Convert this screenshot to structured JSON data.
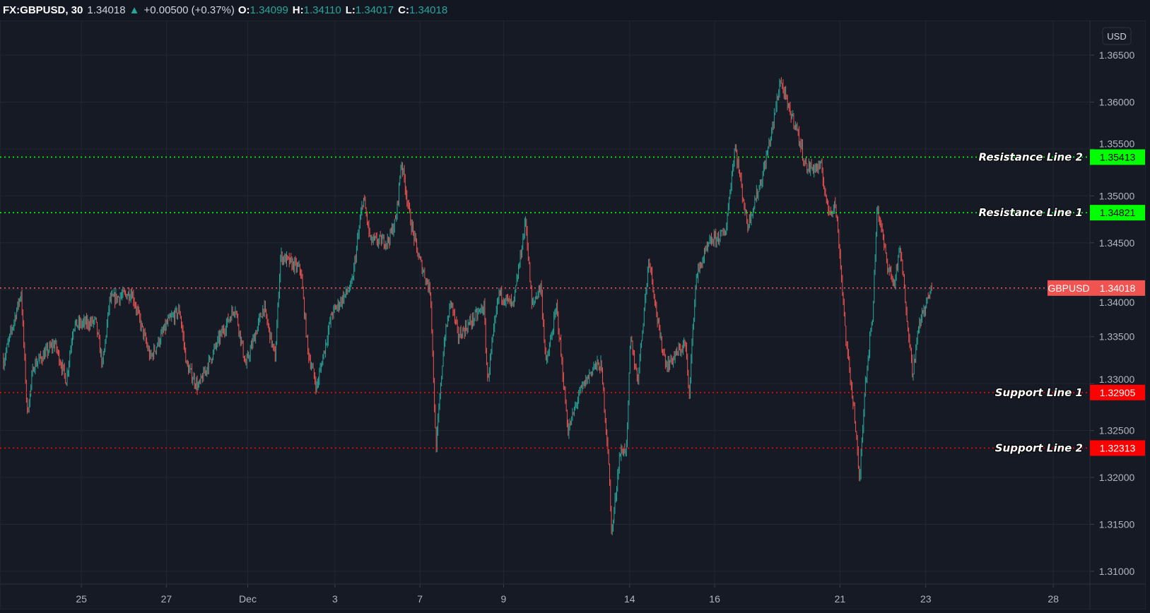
{
  "header": {
    "symbol": "FX:GBPUSD, 30",
    "last": "1.34018",
    "direction_icon": "triangle-up",
    "change": "+0.00500 (+0.37%)",
    "open_label": "O:",
    "open": "1.34099",
    "high_label": "H:",
    "high": "1.34110",
    "low_label": "L:",
    "low": "1.34017",
    "close_label": "C:",
    "close": "1.34018"
  },
  "chart_data": {
    "type": "candlestick",
    "interval": "30",
    "currency_label": "USD",
    "ylim": [
      1.3075,
      1.3675
    ],
    "y_ticks": [
      "1.36500",
      "1.36000",
      "1.35500",
      "1.35000",
      "1.34500",
      "1.34000",
      "1.33500",
      "1.33000",
      "1.32500",
      "1.32000",
      "1.31500",
      "1.31000"
    ],
    "x_ticks": [
      {
        "date": "Nov 25",
        "label": "25"
      },
      {
        "date": "Nov 27",
        "label": "27"
      },
      {
        "date": "Dec 1",
        "label": "Dec"
      },
      {
        "date": "Dec 3",
        "label": "3"
      },
      {
        "date": "Dec 7",
        "label": "7"
      },
      {
        "date": "Dec 9",
        "label": "9"
      },
      {
        "date": "Dec 14",
        "label": "14"
      },
      {
        "date": "Dec 16",
        "label": "16"
      },
      {
        "date": "Dec 21",
        "label": "21"
      },
      {
        "date": "Dec 23",
        "label": "23"
      },
      {
        "date": "Dec 28",
        "label": "28"
      }
    ],
    "grid": true,
    "colors": {
      "up": "#26a69a",
      "down": "#ef5350",
      "resistance": "#00ff00",
      "support": "#ff0000",
      "last_price": "#f05350",
      "background": "#161a25"
    },
    "price_path": [
      [
        "Nov 23 04:00",
        1.3323
      ],
      [
        "Nov 23 14:00",
        1.3397
      ],
      [
        "Nov 23 17:30",
        1.3268
      ],
      [
        "Nov 23 21:00",
        1.3319
      ],
      [
        "Nov 24 09:00",
        1.3343
      ],
      [
        "Nov 24 15:30",
        1.3303
      ],
      [
        "Nov 24 19:30",
        1.3362
      ],
      [
        "Nov 25 08:00",
        1.3366
      ],
      [
        "Nov 25 12:00",
        1.3319
      ],
      [
        "Nov 25 16:00",
        1.3389
      ],
      [
        "Nov 26 04:30",
        1.3397
      ],
      [
        "Nov 26 15:00",
        1.3327
      ],
      [
        "Nov 27 01:00",
        1.3366
      ],
      [
        "Nov 27 07:30",
        1.3378
      ],
      [
        "Nov 27 11:30",
        1.3319
      ],
      [
        "Nov 27 18:00",
        1.3296
      ],
      [
        "Nov 30 07:30",
        1.335
      ],
      [
        "Nov 30 16:00",
        1.3382
      ],
      [
        "Nov 30 22:00",
        1.3319
      ],
      [
        "Dec 1 09:00",
        1.3382
      ],
      [
        "Dec 1 15:30",
        1.3327
      ],
      [
        "Dec 1 18:30",
        1.3436
      ],
      [
        "Dec 2 05:30",
        1.3421
      ],
      [
        "Dec 2 09:30",
        1.3335
      ],
      [
        "Dec 2 14:30",
        1.3296
      ],
      [
        "Dec 2 23:00",
        1.3374
      ],
      [
        "Dec 3 09:30",
        1.3405
      ],
      [
        "Dec 3 16:00",
        1.3499
      ],
      [
        "Dec 3 20:00",
        1.3452
      ],
      [
        "Dec 4 06:00",
        1.3452
      ],
      [
        "Dec 4 10:30",
        1.3475
      ],
      [
        "Dec 4 13:30",
        1.3538
      ],
      [
        "Dec 4 18:30",
        1.3475
      ],
      [
        "Dec 4 23:00",
        1.3436
      ],
      [
        "Dec 7 06:00",
        1.3397
      ],
      [
        "Dec 7 09:00",
        1.3229
      ],
      [
        "Dec 7 13:30",
        1.3343
      ],
      [
        "Dec 7 17:30",
        1.3389
      ],
      [
        "Dec 7 21:30",
        1.335
      ],
      [
        "Dec 8 12:30",
        1.3382
      ],
      [
        "Dec 8 14:30",
        1.3303
      ],
      [
        "Dec 8 21:00",
        1.3397
      ],
      [
        "Dec 9 05:30",
        1.3382
      ],
      [
        "Dec 9 12:30",
        1.3475
      ],
      [
        "Dec 9 16:00",
        1.3382
      ],
      [
        "Dec 9 21:00",
        1.3405
      ],
      [
        "Dec 10 00:00",
        1.3319
      ],
      [
        "Dec 10 06:00",
        1.3382
      ],
      [
        "Dec 10 10:30",
        1.3288
      ],
      [
        "Dec 10 12:30",
        1.3249
      ],
      [
        "Dec 10 18:30",
        1.3288
      ],
      [
        "Dec 11 03:30",
        1.3319
      ],
      [
        "Dec 11 07:30",
        1.3319
      ],
      [
        "Dec 11 11:30",
        1.3225
      ],
      [
        "Dec 11 13:30",
        1.3139
      ],
      [
        "Dec 11 18:00",
        1.3225
      ],
      [
        "Dec 11 22:00",
        1.3233
      ],
      [
        "Dec 14 00:30",
        1.335
      ],
      [
        "Dec 14 04:30",
        1.3303
      ],
      [
        "Dec 14 11:00",
        1.3436
      ],
      [
        "Dec 14 17:00",
        1.335
      ],
      [
        "Dec 14 21:00",
        1.3319
      ],
      [
        "Dec 15 07:30",
        1.3343
      ],
      [
        "Dec 15 09:30",
        1.3288
      ],
      [
        "Dec 15 13:30",
        1.3413
      ],
      [
        "Dec 15 18:00",
        1.3436
      ],
      [
        "Dec 15 22:00",
        1.3452
      ],
      [
        "Dec 16 06:00",
        1.346
      ],
      [
        "Dec 16 11:30",
        1.3554
      ],
      [
        "Dec 16 18:30",
        1.3468
      ],
      [
        "Dec 17 03:30",
        1.3522
      ],
      [
        "Dec 17 09:30",
        1.3577
      ],
      [
        "Dec 17 13:30",
        1.3624
      ],
      [
        "Dec 17 18:00",
        1.3593
      ],
      [
        "Dec 17 22:00",
        1.3577
      ],
      [
        "Dec 18 04:30",
        1.353
      ],
      [
        "Dec 18 13:00",
        1.353
      ],
      [
        "Dec 18 17:00",
        1.3483
      ],
      [
        "Dec 18 21:00",
        1.3491
      ],
      [
        "Dec 21 00:00",
        1.3436
      ],
      [
        "Dec 21 03:30",
        1.3343
      ],
      [
        "Dec 21 08:00",
        1.3272
      ],
      [
        "Dec 21 11:00",
        1.3194
      ],
      [
        "Dec 21 14:00",
        1.3296
      ],
      [
        "Dec 21 18:30",
        1.3374
      ],
      [
        "Dec 21 21:00",
        1.3491
      ],
      [
        "Dec 22 02:30",
        1.3429
      ],
      [
        "Dec 22 06:30",
        1.3405
      ],
      [
        "Dec 22 10:00",
        1.3444
      ],
      [
        "Dec 22 15:00",
        1.335
      ],
      [
        "Dec 22 17:00",
        1.3311
      ],
      [
        "Dec 22 21:00",
        1.3366
      ],
      [
        "Dec 23 01:00",
        1.3389
      ],
      [
        "Dec 23 03:30",
        1.34018
      ]
    ],
    "levels": [
      {
        "label": "Resistance Line 2",
        "value": "1.35413",
        "kind": "resistance"
      },
      {
        "label": "Resistance Line 1",
        "value": "1.34821",
        "kind": "resistance"
      },
      {
        "label": "Support Line 1",
        "value": "1.32905",
        "kind": "support"
      },
      {
        "label": "Support Line 2",
        "value": "1.32313",
        "kind": "support"
      }
    ],
    "last_price": {
      "label": "GBPUSD",
      "value": "1.34018"
    }
  }
}
